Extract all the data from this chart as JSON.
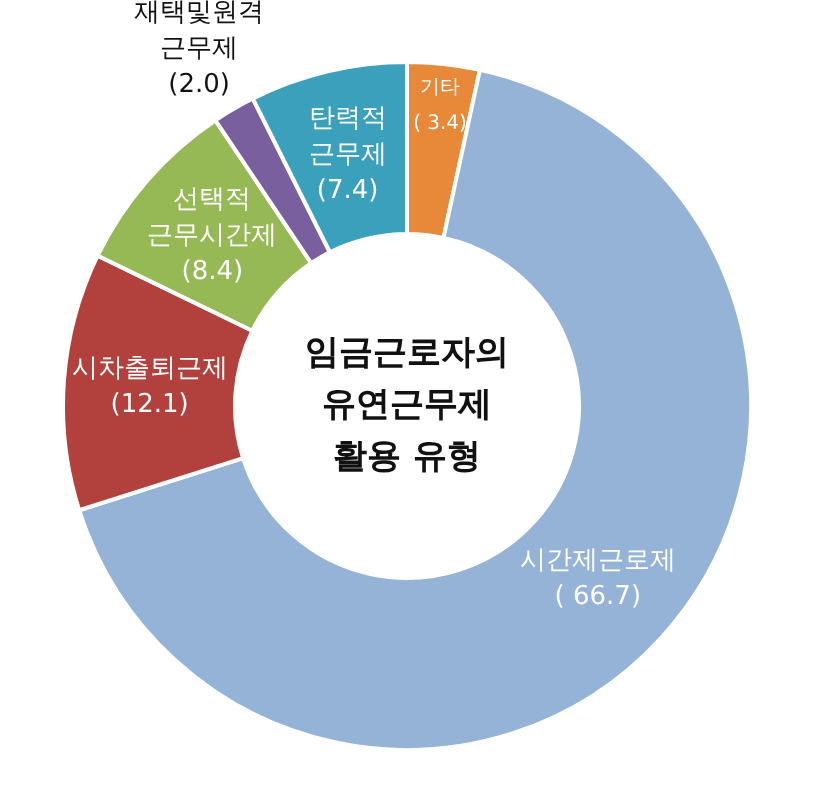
{
  "chart_data": {
    "type": "donut",
    "title": "임금근로자의\n유연근무제\n활용 유형",
    "categories": [
      "기타",
      "시간제근로제",
      "시차출퇴근제",
      "선택적 근무시간제",
      "재택및원격 근무제",
      "탄력적 근무제"
    ],
    "values": [
      3.4,
      66.7,
      12.1,
      8.4,
      2.0,
      7.4
    ],
    "value_labels": [
      "( 3.4)",
      "( 66.7)",
      "(12.1)",
      "(8.4)",
      "(2.0)",
      "(7.4)"
    ],
    "colors": [
      "#e8893a",
      "#95b3d7",
      "#b2403c",
      "#97b955",
      "#7a5f9e",
      "#3aa0bc"
    ]
  }
}
